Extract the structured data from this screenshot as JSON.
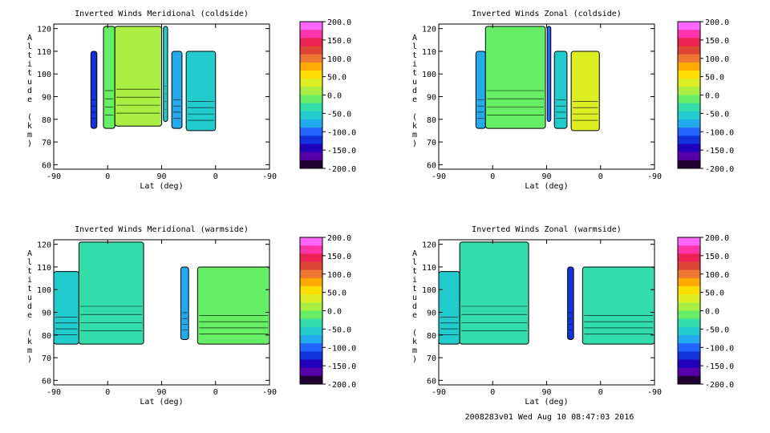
{
  "colorbar": {
    "labels": [
      "200.0",
      "150.0",
      "100.0",
      "50.0",
      "0.0",
      "-50.0",
      "-100.0",
      "-150.0",
      "-200.0"
    ],
    "colors": [
      "#ff66ff",
      "#ff33aa",
      "#ee2255",
      "#dd4433",
      "#ee7733",
      "#ffaa00",
      "#ffdd00",
      "#ddee22",
      "#aaee44",
      "#66ee66",
      "#33ddaa",
      "#22cccc",
      "#22aaee",
      "#2266ff",
      "#1133dd",
      "#2200bb",
      "#5500aa",
      "#220033"
    ]
  },
  "footer": "2008283v01 Wed Aug 10 08:47:03 2016",
  "chart_data": [
    {
      "type": "heatmap",
      "title": "Inverted Winds Meridional (coldside)",
      "xlabel": "Lat (deg)",
      "ylabel": "Altitude (km)",
      "x_ticks": [
        "-90",
        "0",
        "90",
        "0",
        "-90"
      ],
      "y_ticks": [
        "60",
        "70",
        "80",
        "90",
        "100",
        "110",
        "120"
      ],
      "ylim": [
        58,
        122
      ],
      "segments": [
        {
          "x": [
            -28,
            -18
          ],
          "alt": [
            76,
            110
          ],
          "value": -120
        },
        {
          "x": [
            -7,
            12
          ],
          "alt": [
            76,
            121
          ],
          "value": -10
        },
        {
          "x": [
            12,
            90
          ],
          "alt": [
            77,
            121
          ],
          "value": 10
        },
        {
          "x": [
            93,
            100
          ],
          "alt": [
            79,
            121
          ],
          "value": -60
        },
        {
          "x": [
            107,
            124
          ],
          "alt": [
            76,
            110
          ],
          "value": -80
        },
        {
          "x": [
            131,
            180
          ],
          "alt": [
            75,
            110
          ],
          "value": -70
        }
      ]
    },
    {
      "type": "heatmap",
      "title": "Inverted Winds Zonal (coldside)",
      "xlabel": "Lat (deg)",
      "ylabel": "Altitude (km)",
      "x_ticks": [
        "-90",
        "0",
        "90",
        "0",
        "-90"
      ],
      "y_ticks": [
        "60",
        "70",
        "80",
        "90",
        "100",
        "110",
        "120"
      ],
      "ylim": [
        58,
        122
      ],
      "segments": [
        {
          "x": [
            -28,
            -12
          ],
          "alt": [
            76,
            110
          ],
          "value": -80
        },
        {
          "x": [
            -12,
            88
          ],
          "alt": [
            76,
            121
          ],
          "value": -20
        },
        {
          "x": [
            91,
            97
          ],
          "alt": [
            79,
            121
          ],
          "value": -100
        },
        {
          "x": [
            103,
            124
          ],
          "alt": [
            76,
            110
          ],
          "value": -60
        },
        {
          "x": [
            131,
            178
          ],
          "alt": [
            75,
            110
          ],
          "value": 40
        }
      ]
    },
    {
      "type": "heatmap",
      "title": "Inverted Winds Meridional (warmside)",
      "xlabel": "Lat (deg)",
      "ylabel": "Altitude (km)",
      "x_ticks": [
        "-90",
        "0",
        "90",
        "0",
        "-90"
      ],
      "y_ticks": [
        "60",
        "70",
        "80",
        "90",
        "100",
        "110",
        "120"
      ],
      "ylim": [
        58,
        122
      ],
      "segments": [
        {
          "x": [
            -90,
            -48
          ],
          "alt": [
            76,
            108
          ],
          "value": -60
        },
        {
          "x": [
            -48,
            60
          ],
          "alt": [
            76,
            121
          ],
          "value": -40
        },
        {
          "x": [
            122,
            135
          ],
          "alt": [
            78,
            110
          ],
          "value": -90
        },
        {
          "x": [
            150,
            270
          ],
          "alt": [
            76,
            110
          ],
          "value": -20
        }
      ]
    },
    {
      "type": "heatmap",
      "title": "Inverted Winds Zonal (warmside)",
      "xlabel": "Lat (deg)",
      "ylabel": "Altitude (km)",
      "x_ticks": [
        "-90",
        "0",
        "90",
        "0",
        "-90"
      ],
      "y_ticks": [
        "60",
        "70",
        "80",
        "90",
        "100",
        "110",
        "120"
      ],
      "ylim": [
        58,
        122
      ],
      "segments": [
        {
          "x": [
            -90,
            -55
          ],
          "alt": [
            76,
            108
          ],
          "value": -60
        },
        {
          "x": [
            -55,
            60
          ],
          "alt": [
            76,
            121
          ],
          "value": -30
        },
        {
          "x": [
            125,
            135
          ],
          "alt": [
            78,
            110
          ],
          "value": -120
        },
        {
          "x": [
            150,
            270
          ],
          "alt": [
            76,
            110
          ],
          "value": -40
        }
      ]
    }
  ]
}
